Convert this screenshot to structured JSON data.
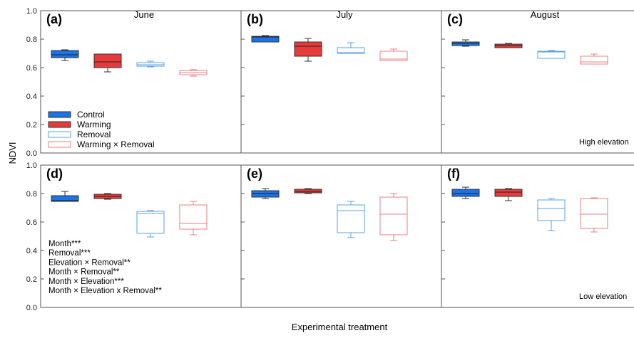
{
  "chart_data": {
    "type": "box",
    "ylabel": "NDVI",
    "xlabel": "Experimental treatment",
    "ylim": [
      0.0,
      1.0
    ],
    "yticks": [
      "0.0",
      "0.2",
      "0.4",
      "0.6",
      "0.8",
      "1.0"
    ],
    "colors": {
      "Control": "#1a73e8",
      "Warming": "#e83a3a",
      "Removal": "#5aa0e8",
      "Warming × Removal": "#e87f7f"
    },
    "legend": {
      "placement": "lower-left of panel (a)",
      "entries": [
        {
          "name": "Control",
          "style": "filled",
          "color": "#1a73e8"
        },
        {
          "name": "Warming",
          "style": "filled",
          "color": "#e83a3a"
        },
        {
          "name": "Removal",
          "style": "outline",
          "color": "#5aa0e8"
        },
        {
          "name": "Warming × Removal",
          "style": "outline",
          "color": "#e87f7f"
        }
      ]
    },
    "stats_annotation": [
      "Month***",
      "Removal***",
      "Elevation × Removal**",
      "Month × Removal**",
      "Month × Elevation***",
      "Month × Elevation x Removal**"
    ],
    "panels": [
      {
        "label": "(a)",
        "month": "June",
        "corner": "",
        "boxes": [
          {
            "treatment": "Control",
            "min": 0.65,
            "q1": 0.67,
            "median": 0.69,
            "q3": 0.72,
            "max": 0.725
          },
          {
            "treatment": "Warming",
            "min": 0.57,
            "q1": 0.6,
            "median": 0.64,
            "q3": 0.695,
            "max": 0.695
          },
          {
            "treatment": "Removal",
            "min": 0.605,
            "q1": 0.61,
            "median": 0.62,
            "q3": 0.635,
            "max": 0.645
          },
          {
            "treatment": "Warming × Removal",
            "min": 0.54,
            "q1": 0.55,
            "median": 0.565,
            "q3": 0.58,
            "max": 0.585
          }
        ]
      },
      {
        "label": "(b)",
        "month": "July",
        "corner": "",
        "boxes": [
          {
            "treatment": "Control",
            "min": 0.78,
            "q1": 0.78,
            "median": 0.815,
            "q3": 0.82,
            "max": 0.825
          },
          {
            "treatment": "Warming",
            "min": 0.645,
            "q1": 0.68,
            "median": 0.75,
            "q3": 0.78,
            "max": 0.805
          },
          {
            "treatment": "Removal",
            "min": 0.7,
            "q1": 0.7,
            "median": 0.705,
            "q3": 0.74,
            "max": 0.775
          },
          {
            "treatment": "Warming × Removal",
            "min": 0.65,
            "q1": 0.65,
            "median": 0.66,
            "q3": 0.715,
            "max": 0.73
          }
        ]
      },
      {
        "label": "(c)",
        "month": "August",
        "corner": "High elevation",
        "boxes": [
          {
            "treatment": "Control",
            "min": 0.75,
            "q1": 0.755,
            "median": 0.77,
            "q3": 0.78,
            "max": 0.795
          },
          {
            "treatment": "Warming",
            "min": 0.74,
            "q1": 0.74,
            "median": 0.755,
            "q3": 0.765,
            "max": 0.77
          },
          {
            "treatment": "Removal",
            "min": 0.665,
            "q1": 0.665,
            "median": 0.71,
            "q3": 0.715,
            "max": 0.72
          },
          {
            "treatment": "Warming × Removal",
            "min": 0.625,
            "q1": 0.625,
            "median": 0.64,
            "q3": 0.68,
            "max": 0.695
          }
        ]
      },
      {
        "label": "(d)",
        "month": "",
        "corner": "",
        "boxes": [
          {
            "treatment": "Control",
            "min": 0.745,
            "q1": 0.745,
            "median": 0.75,
            "q3": 0.785,
            "max": 0.815
          },
          {
            "treatment": "Warming",
            "min": 0.76,
            "q1": 0.765,
            "median": 0.78,
            "q3": 0.795,
            "max": 0.8
          },
          {
            "treatment": "Removal",
            "min": 0.495,
            "q1": 0.52,
            "median": 0.66,
            "q3": 0.675,
            "max": 0.68
          },
          {
            "treatment": "Warming × Removal",
            "min": 0.51,
            "q1": 0.55,
            "median": 0.59,
            "q3": 0.72,
            "max": 0.745
          }
        ]
      },
      {
        "label": "(e)",
        "month": "",
        "corner": "",
        "boxes": [
          {
            "treatment": "Control",
            "min": 0.765,
            "q1": 0.775,
            "median": 0.8,
            "q3": 0.82,
            "max": 0.835
          },
          {
            "treatment": "Warming",
            "min": 0.8,
            "q1": 0.805,
            "median": 0.815,
            "q3": 0.83,
            "max": 0.835
          },
          {
            "treatment": "Removal",
            "min": 0.49,
            "q1": 0.525,
            "median": 0.68,
            "q3": 0.72,
            "max": 0.745
          },
          {
            "treatment": "Warming × Removal",
            "min": 0.47,
            "q1": 0.51,
            "median": 0.655,
            "q3": 0.775,
            "max": 0.8
          }
        ]
      },
      {
        "label": "(f)",
        "month": "",
        "corner": "Low elevation",
        "boxes": [
          {
            "treatment": "Control",
            "min": 0.765,
            "q1": 0.78,
            "median": 0.8,
            "q3": 0.83,
            "max": 0.845
          },
          {
            "treatment": "Warming",
            "min": 0.75,
            "q1": 0.78,
            "median": 0.81,
            "q3": 0.83,
            "max": 0.835
          },
          {
            "treatment": "Removal",
            "min": 0.54,
            "q1": 0.61,
            "median": 0.695,
            "q3": 0.755,
            "max": 0.765
          },
          {
            "treatment": "Warming × Removal",
            "min": 0.53,
            "q1": 0.555,
            "median": 0.655,
            "q3": 0.765,
            "max": 0.77
          }
        ]
      }
    ]
  }
}
